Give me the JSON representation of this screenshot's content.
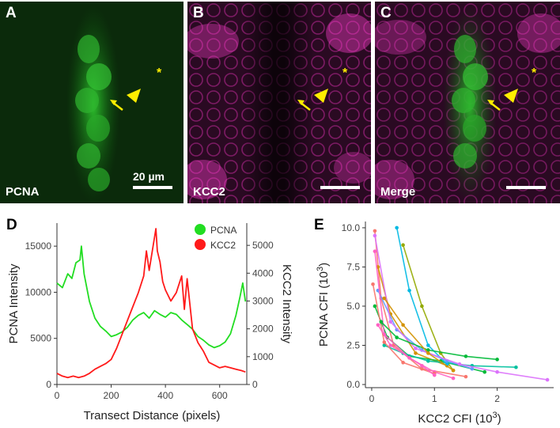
{
  "panels": {
    "a": {
      "letter": "A",
      "label": "PCNA",
      "scale_bar": "20 µm"
    },
    "b": {
      "letter": "B",
      "label": "KCC2"
    },
    "c": {
      "letter": "C",
      "label": "Merge"
    },
    "asterisk": "*"
  },
  "colors": {
    "pcna": "#22dd22",
    "kcc2": "#ff1a1a",
    "magenta": "#ff33cc",
    "annotation": "#ffee00"
  },
  "chart_data": [
    {
      "type": "line",
      "panel_letter": "D",
      "xlabel": "Transect Distance (pixels)",
      "ylabel": "PCNA Intensity",
      "ylabel_right": "KCC2 Intensity",
      "xlim": [
        0,
        700
      ],
      "ylim": [
        0,
        17500
      ],
      "ylim_right": [
        0,
        5800
      ],
      "xticks": [
        0,
        200,
        400,
        600
      ],
      "yticks": [
        0,
        5000,
        10000,
        15000
      ],
      "yticks_right": [
        0,
        1000,
        2000,
        3000,
        4000,
        5000
      ],
      "legend_position": "top-right",
      "series": [
        {
          "name": "PCNA",
          "axis": "left",
          "x": [
            0,
            20,
            40,
            55,
            70,
            85,
            90,
            100,
            120,
            140,
            160,
            180,
            200,
            220,
            240,
            260,
            280,
            300,
            320,
            340,
            360,
            380,
            400,
            420,
            440,
            460,
            480,
            500,
            520,
            540,
            560,
            580,
            600,
            620,
            640,
            660,
            675,
            685,
            695
          ],
          "values": [
            11000,
            10500,
            12000,
            11500,
            13200,
            13500,
            15000,
            12000,
            9000,
            7200,
            6300,
            5800,
            5200,
            5400,
            5700,
            6200,
            7000,
            7500,
            7800,
            7200,
            8000,
            7600,
            7300,
            7800,
            7600,
            7000,
            6500,
            6000,
            5200,
            4800,
            4300,
            4000,
            4200,
            4600,
            5500,
            7500,
            9500,
            11000,
            9000
          ]
        },
        {
          "name": "KCC2",
          "axis": "right",
          "x": [
            0,
            20,
            40,
            60,
            80,
            100,
            120,
            140,
            160,
            180,
            200,
            220,
            240,
            260,
            280,
            300,
            320,
            330,
            340,
            350,
            360,
            365,
            370,
            380,
            390,
            400,
            420,
            440,
            460,
            470,
            480,
            490,
            500,
            520,
            540,
            560,
            580,
            600,
            620,
            640,
            660,
            680,
            695
          ],
          "values": [
            400,
            300,
            250,
            300,
            250,
            300,
            400,
            550,
            650,
            750,
            900,
            1300,
            1800,
            2300,
            2800,
            3300,
            3900,
            4800,
            4100,
            4700,
            5300,
            5600,
            4800,
            4400,
            3700,
            3400,
            3000,
            3300,
            3900,
            2700,
            3800,
            2900,
            2000,
            1500,
            1200,
            800,
            700,
            600,
            650,
            600,
            550,
            500,
            450
          ]
        }
      ]
    },
    {
      "type": "scatter",
      "panel_letter": "E",
      "xlabel": "KCC2 CFI (10",
      "xlabel_exp": "3",
      "xlabel_end": ")",
      "ylabel": "PCNA CFI (10",
      "ylabel_exp": "3",
      "ylabel_end": ")",
      "xlim": [
        -0.1,
        2.9
      ],
      "ylim": [
        -0.2,
        10.4
      ],
      "xticks": [
        0,
        1,
        2
      ],
      "yticks": [
        0.0,
        2.5,
        5.0,
        7.5,
        10.0
      ],
      "series": [
        {
          "color": "#f8766d",
          "x": [
            0.05,
            0.15,
            0.35,
            0.8,
            1.5
          ],
          "values": [
            9.8,
            5.5,
            2.5,
            1.0,
            0.5
          ]
        },
        {
          "color": "#d39200",
          "x": [
            0.1,
            0.3,
            0.7,
            1.2
          ],
          "values": [
            7.5,
            4.5,
            2.0,
            1.2
          ]
        },
        {
          "color": "#93aa00",
          "x": [
            0.5,
            0.8,
            1.1,
            1.3
          ],
          "values": [
            8.9,
            5.0,
            2.0,
            0.9
          ]
        },
        {
          "color": "#00ba38",
          "x": [
            0.05,
            0.25,
            0.6,
            1.1,
            1.8
          ],
          "values": [
            5.0,
            3.0,
            1.8,
            1.5,
            0.8
          ]
        },
        {
          "color": "#00c19f",
          "x": [
            0.2,
            0.5,
            0.9,
            1.6,
            2.3
          ],
          "values": [
            2.5,
            2.0,
            1.5,
            1.2,
            1.1
          ]
        },
        {
          "color": "#00b9e3",
          "x": [
            0.4,
            0.6,
            0.9,
            1.2
          ],
          "values": [
            10.0,
            6.0,
            2.5,
            1.3
          ]
        },
        {
          "color": "#619cff",
          "x": [
            0.1,
            0.4,
            0.8,
            1.2,
            1.6
          ],
          "values": [
            6.0,
            3.5,
            2.2,
            1.5,
            1.0
          ]
        },
        {
          "color": "#db72fb",
          "x": [
            0.05,
            0.3,
            0.7,
            1.4,
            2.0,
            2.8
          ],
          "values": [
            9.5,
            4.0,
            2.3,
            1.3,
            0.8,
            0.3
          ]
        },
        {
          "color": "#ff61c3",
          "x": [
            0.05,
            0.2,
            0.6,
            1.0,
            1.3
          ],
          "values": [
            8.5,
            3.2,
            1.7,
            0.8,
            0.4
          ]
        },
        {
          "color": "#f8766d",
          "x": [
            0.02,
            0.2,
            0.5,
            1.0
          ],
          "values": [
            6.4,
            2.7,
            1.4,
            0.7
          ]
        },
        {
          "color": "#00ba38",
          "x": [
            0.15,
            0.4,
            0.9,
            1.5,
            2.0
          ],
          "values": [
            4.0,
            3.0,
            2.2,
            1.8,
            1.6
          ]
        },
        {
          "color": "#ff61c3",
          "x": [
            0.1,
            0.3,
            0.8,
            1.0
          ],
          "values": [
            3.8,
            2.5,
            1.2,
            0.6
          ]
        },
        {
          "color": "#d39200",
          "x": [
            0.2,
            0.5,
            0.9,
            1.3
          ],
          "values": [
            5.5,
            3.8,
            2.0,
            0.9
          ]
        }
      ]
    }
  ]
}
